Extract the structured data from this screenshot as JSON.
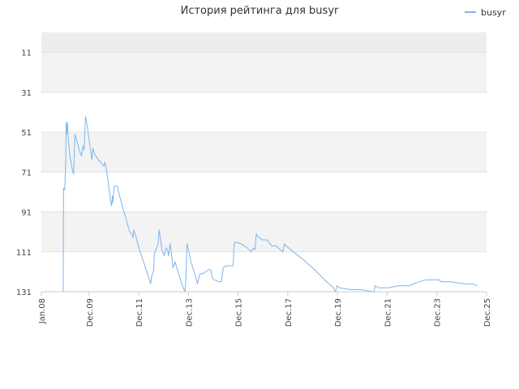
{
  "chart_data": {
    "type": "line",
    "title": "История рейтинга для busyr",
    "xlabel": "",
    "ylabel": "",
    "x_tick_labels": [
      "Jan.08",
      "Dec.09",
      "Dec.11",
      "Dec.13",
      "Dec.15",
      "Dec.17",
      "Dec.19",
      "Dec.21",
      "Dec.23",
      "Dec.25"
    ],
    "x_ticks": [
      2008.0,
      2009.92,
      2011.92,
      2013.92,
      2015.92,
      2017.92,
      2019.92,
      2021.92,
      2023.92,
      2025.92
    ],
    "xlim": [
      2008.0,
      2025.92
    ],
    "y_tick_labels": [
      "11",
      "31",
      "51",
      "71",
      "91",
      "111",
      "131"
    ],
    "y_ticks": [
      11,
      31,
      51,
      71,
      91,
      111,
      131
    ],
    "ylim": [
      131,
      1
    ],
    "y_inverted": true,
    "grid": true,
    "legend": "top-right",
    "series": [
      {
        "name": "busyr",
        "color": "#7cb5ec",
        "points": [
          [
            2008.88,
            131
          ],
          [
            2008.89,
            79
          ],
          [
            2008.93,
            80
          ],
          [
            2008.95,
            77
          ],
          [
            2008.98,
            66
          ],
          [
            2009.0,
            46
          ],
          [
            2009.02,
            52
          ],
          [
            2009.05,
            46
          ],
          [
            2009.08,
            54
          ],
          [
            2009.15,
            63
          ],
          [
            2009.25,
            70
          ],
          [
            2009.3,
            72
          ],
          [
            2009.35,
            52
          ],
          [
            2009.42,
            55
          ],
          [
            2009.55,
            61
          ],
          [
            2009.62,
            63
          ],
          [
            2009.67,
            58
          ],
          [
            2009.72,
            60
          ],
          [
            2009.78,
            43
          ],
          [
            2009.85,
            48
          ],
          [
            2009.9,
            53
          ],
          [
            2010.0,
            62
          ],
          [
            2010.04,
            65
          ],
          [
            2010.07,
            59
          ],
          [
            2010.14,
            62
          ],
          [
            2010.3,
            65
          ],
          [
            2010.45,
            67
          ],
          [
            2010.52,
            68
          ],
          [
            2010.56,
            66
          ],
          [
            2010.62,
            70
          ],
          [
            2010.7,
            77
          ],
          [
            2010.78,
            85
          ],
          [
            2010.83,
            88
          ],
          [
            2010.86,
            83
          ],
          [
            2010.88,
            86
          ],
          [
            2010.93,
            78
          ],
          [
            2011.05,
            78
          ],
          [
            2011.15,
            83
          ],
          [
            2011.28,
            89
          ],
          [
            2011.42,
            95
          ],
          [
            2011.55,
            101
          ],
          [
            2011.65,
            102
          ],
          [
            2011.69,
            104
          ],
          [
            2011.72,
            100
          ],
          [
            2011.8,
            103
          ],
          [
            2011.95,
            110
          ],
          [
            2012.3,
            123
          ],
          [
            2012.4,
            127
          ],
          [
            2012.44,
            123
          ],
          [
            2012.48,
            122
          ],
          [
            2012.52,
            120
          ],
          [
            2012.55,
            112
          ],
          [
            2012.7,
            107
          ],
          [
            2012.74,
            100
          ],
          [
            2012.78,
            103
          ],
          [
            2012.85,
            110
          ],
          [
            2012.95,
            113
          ],
          [
            2013.02,
            109
          ],
          [
            2013.08,
            110
          ],
          [
            2013.12,
            113
          ],
          [
            2013.18,
            107
          ],
          [
            2013.22,
            110
          ],
          [
            2013.3,
            119
          ],
          [
            2013.38,
            116
          ],
          [
            2013.5,
            121
          ],
          [
            2013.68,
            128
          ],
          [
            2013.78,
            131
          ],
          [
            2013.82,
            124
          ],
          [
            2013.86,
            107
          ],
          [
            2013.92,
            110
          ],
          [
            2014.0,
            115
          ],
          [
            2014.15,
            121
          ],
          [
            2014.22,
            124
          ],
          [
            2014.28,
            127
          ],
          [
            2014.38,
            122
          ],
          [
            2014.5,
            122
          ],
          [
            2014.72,
            120
          ],
          [
            2014.82,
            120
          ],
          [
            2014.88,
            124
          ],
          [
            2014.95,
            125
          ],
          [
            2015.15,
            126
          ],
          [
            2015.25,
            126
          ],
          [
            2015.32,
            119
          ],
          [
            2015.42,
            118
          ],
          [
            2015.55,
            118
          ],
          [
            2015.72,
            118
          ],
          [
            2015.76,
            107
          ],
          [
            2015.8,
            106
          ],
          [
            2016.05,
            107
          ],
          [
            2016.28,
            109
          ],
          [
            2016.45,
            111
          ],
          [
            2016.52,
            109
          ],
          [
            2016.6,
            110
          ],
          [
            2016.65,
            102
          ],
          [
            2016.7,
            103
          ],
          [
            2016.88,
            105
          ],
          [
            2017.08,
            105
          ],
          [
            2017.28,
            108
          ],
          [
            2017.45,
            108
          ],
          [
            2017.62,
            110
          ],
          [
            2017.72,
            111
          ],
          [
            2017.78,
            107
          ],
          [
            2017.85,
            108
          ],
          [
            2018.15,
            111
          ],
          [
            2018.55,
            115
          ],
          [
            2019.0,
            120
          ],
          [
            2019.4,
            125
          ],
          [
            2019.75,
            129
          ],
          [
            2019.84,
            131
          ],
          [
            2019.9,
            128
          ],
          [
            2020.0,
            129
          ],
          [
            2020.5,
            130
          ],
          [
            2020.9,
            130
          ],
          [
            2021.3,
            131
          ],
          [
            2021.4,
            131
          ],
          [
            2021.43,
            128
          ],
          [
            2021.58,
            129
          ],
          [
            2022.0,
            129
          ],
          [
            2022.35,
            128
          ],
          [
            2022.8,
            128
          ],
          [
            2023.2,
            126
          ],
          [
            2023.5,
            125
          ],
          [
            2023.78,
            125
          ],
          [
            2024.0,
            125
          ],
          [
            2024.1,
            126
          ],
          [
            2024.5,
            126
          ],
          [
            2025.0,
            127
          ],
          [
            2025.35,
            127
          ],
          [
            2025.55,
            128
          ]
        ]
      }
    ]
  }
}
